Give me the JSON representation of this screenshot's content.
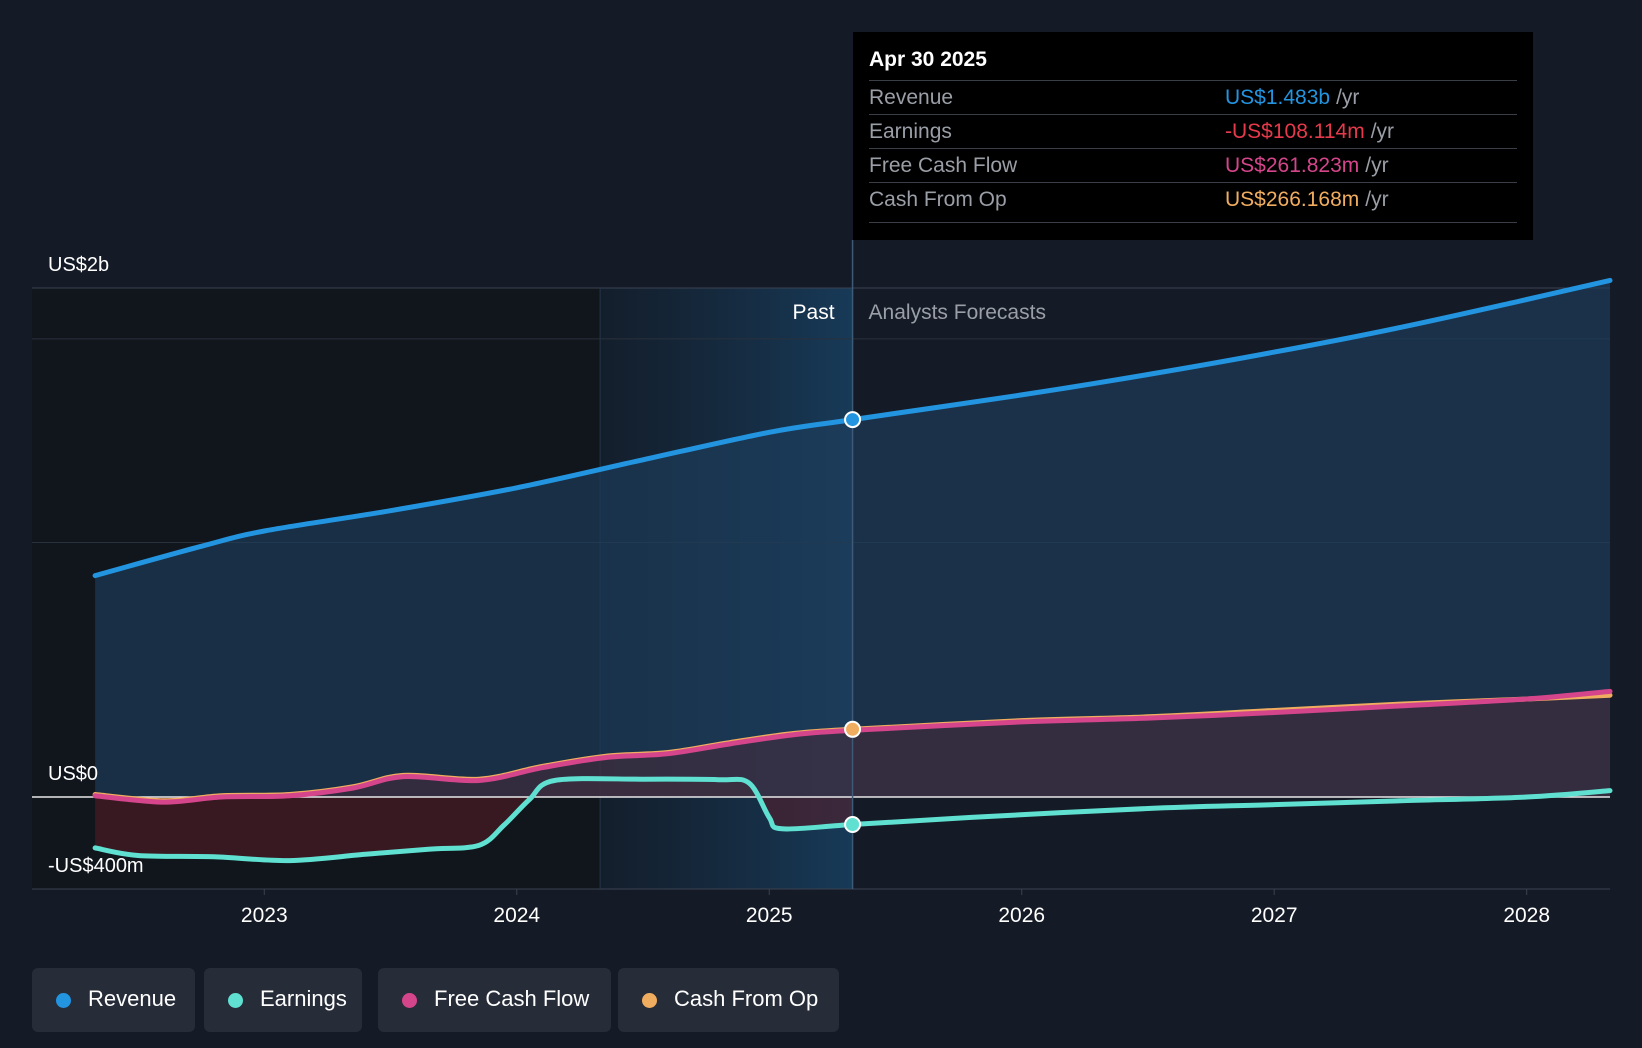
{
  "tooltip": {
    "date": "Apr 30 2025",
    "rows": [
      {
        "label": "Revenue",
        "value": "US$1.483b",
        "unit": "/yr",
        "color": "#2394df"
      },
      {
        "label": "Earnings",
        "value": "-US$108.114m",
        "unit": "/yr",
        "color": "#e6394b"
      },
      {
        "label": "Free Cash Flow",
        "value": "US$261.823m",
        "unit": "/yr",
        "color": "#d5458c"
      },
      {
        "label": "Cash From Op",
        "value": "US$266.168m",
        "unit": "/yr",
        "color": "#f0ad5f"
      }
    ]
  },
  "legend": [
    {
      "label": "Revenue",
      "color": "#2394df"
    },
    {
      "label": "Earnings",
      "color": "#5fe0d0"
    },
    {
      "label": "Free Cash Flow",
      "color": "#d5458c"
    },
    {
      "label": "Cash From Op",
      "color": "#f0ad5f"
    }
  ],
  "chart_data": {
    "type": "line",
    "y_axis_labels": [
      "US$2b",
      "US$0",
      "-US$400m"
    ],
    "ylim": [
      -400,
      2200
    ],
    "x_ticks": [
      "2023",
      "2024",
      "2025",
      "2026",
      "2027",
      "2028"
    ],
    "x_tick_values": [
      2023.0,
      2024.0,
      2025.0,
      2026.0,
      2027.0,
      2028.0
    ],
    "xlim": [
      2022.08,
      2028.33
    ],
    "past_label": "Past",
    "forecast_label": "Analysts Forecasts",
    "past_highlight_start": 2024.33,
    "divider_x": 2025.33,
    "marker_x": 2025.33,
    "series": [
      {
        "name": "Revenue",
        "color": "#2394df",
        "area": true,
        "x": [
          2022.33,
          2022.75,
          2023.0,
          2023.5,
          2024.0,
          2024.5,
          2025.0,
          2025.33,
          2026.0,
          2026.5,
          2027.0,
          2027.5,
          2028.0,
          2028.33
        ],
        "y": [
          870,
          985,
          1045,
          1125,
          1215,
          1325,
          1433,
          1483,
          1580,
          1660,
          1748,
          1845,
          1955,
          2030
        ]
      },
      {
        "name": "Cash From Op",
        "color": "#f0ad5f",
        "area": true,
        "x": [
          2022.33,
          2022.6,
          2022.83,
          2023.1,
          2023.35,
          2023.55,
          2023.85,
          2024.1,
          2024.35,
          2024.6,
          2024.85,
          2025.1,
          2025.33,
          2026.0,
          2026.5,
          2027.0,
          2027.5,
          2028.0,
          2028.33
        ],
        "y": [
          10,
          -15,
          5,
          10,
          40,
          85,
          70,
          120,
          160,
          175,
          215,
          250,
          266,
          300,
          315,
          340,
          365,
          385,
          400
        ]
      },
      {
        "name": "Free Cash Flow",
        "color": "#d5458c",
        "area": false,
        "x": [
          2022.33,
          2022.6,
          2022.83,
          2023.1,
          2023.35,
          2023.55,
          2023.85,
          2024.1,
          2024.35,
          2024.6,
          2024.85,
          2025.1,
          2025.33,
          2026.0,
          2026.5,
          2027.0,
          2027.5,
          2028.0,
          2028.33
        ],
        "y": [
          5,
          -20,
          0,
          5,
          35,
          80,
          65,
          115,
          155,
          170,
          210,
          245,
          262,
          295,
          310,
          332,
          358,
          385,
          415
        ]
      },
      {
        "name": "Earnings",
        "color": "#5fe0d0",
        "area": false,
        "x": [
          2022.33,
          2022.5,
          2022.8,
          2023.1,
          2023.4,
          2023.65,
          2023.85,
          2023.95,
          2024.05,
          2024.15,
          2024.5,
          2024.8,
          2024.92,
          2025.0,
          2025.05,
          2025.33,
          2025.8,
          2026.5,
          2027.0,
          2027.5,
          2028.0,
          2028.33
        ],
        "y": [
          -200,
          -230,
          -235,
          -250,
          -225,
          -205,
          -190,
          -110,
          -10,
          65,
          70,
          68,
          55,
          -80,
          -125,
          -108,
          -80,
          -45,
          -30,
          -15,
          0,
          25
        ]
      }
    ]
  }
}
